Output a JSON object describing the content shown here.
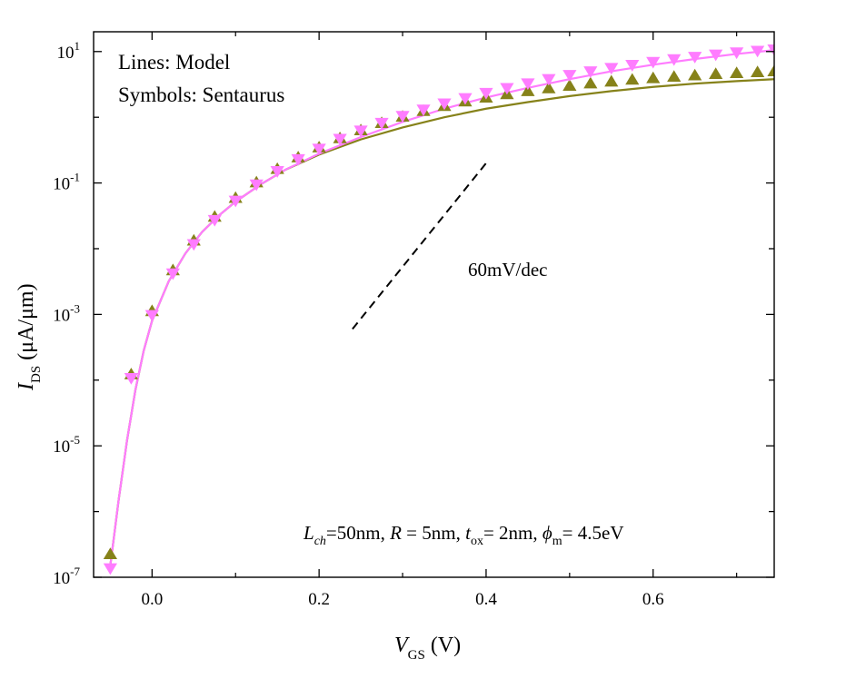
{
  "chart_data": {
    "type": "scatter",
    "xlabel": "V",
    "xlabel_sub": "GS",
    "xlabel_unit": "(V)",
    "ylabel": "I",
    "ylabel_sub": "DS",
    "ylabel_unit": "(μA/μm)",
    "xlim": [
      -0.07,
      0.745
    ],
    "ylim": [
      1e-07,
      20
    ],
    "y_scale": "log",
    "x_ticks": [
      {
        "value": 0.0,
        "label": "0.0"
      },
      {
        "value": 0.2,
        "label": "0.2"
      },
      {
        "value": 0.4,
        "label": "0.4"
      },
      {
        "value": 0.6,
        "label": "0.6"
      }
    ],
    "y_ticks": [
      {
        "value": 1e-07,
        "base": "10",
        "exp": "-7"
      },
      {
        "value": 1e-05,
        "base": "10",
        "exp": "-5"
      },
      {
        "value": 0.001,
        "base": "10",
        "exp": "-3"
      },
      {
        "value": 0.1,
        "base": "10",
        "exp": "-1"
      },
      {
        "value": 10,
        "base": "10",
        "exp": "1"
      }
    ],
    "legend_lines": [
      "Lines: Model",
      "Symbols: Sentaurus"
    ],
    "legend_position": "top-left",
    "slope_label": "60mV/dec",
    "slope_line": {
      "x": [
        0.24,
        0.4
      ],
      "y": [
        0.0006,
        0.2
      ]
    },
    "params": [
      {
        "main": "L",
        "sub": "ch",
        "rest": "=50nm, "
      },
      {
        "main": "R",
        "sub": "",
        "rest": " = 5nm, "
      },
      {
        "main": "t",
        "sub": "ox",
        "rest": "= 2nm, "
      },
      {
        "main": "ϕ",
        "sub": "m",
        "rest": "= 4.5eV"
      }
    ],
    "series": [
      {
        "marker": "triangle-up",
        "color": "#86821a",
        "x": [
          -0.05,
          -0.025,
          0.0,
          0.025,
          0.05,
          0.075,
          0.1,
          0.125,
          0.15,
          0.175,
          0.2,
          0.225,
          0.25,
          0.275,
          0.3,
          0.325,
          0.35,
          0.375,
          0.4,
          0.425,
          0.45,
          0.475,
          0.5,
          0.525,
          0.55,
          0.575,
          0.6,
          0.625,
          0.65,
          0.675,
          0.7,
          0.725,
          0.745
        ],
        "y": [
          2.2e-07,
          0.00012,
          0.0011,
          0.0046,
          0.013,
          0.03,
          0.058,
          0.1,
          0.16,
          0.24,
          0.34,
          0.47,
          0.62,
          0.8,
          1.0,
          1.22,
          1.45,
          1.7,
          1.95,
          2.2,
          2.45,
          2.7,
          2.95,
          3.2,
          3.42,
          3.65,
          3.85,
          4.05,
          4.25,
          4.45,
          4.6,
          4.75,
          4.9
        ]
      },
      {
        "marker": "triangle-down",
        "color": "#ff7cff",
        "x": [
          -0.05,
          -0.025,
          0.0,
          0.025,
          0.05,
          0.075,
          0.1,
          0.125,
          0.15,
          0.175,
          0.2,
          0.225,
          0.25,
          0.275,
          0.3,
          0.325,
          0.35,
          0.375,
          0.4,
          0.425,
          0.45,
          0.475,
          0.5,
          0.525,
          0.55,
          0.575,
          0.6,
          0.625,
          0.65,
          0.675,
          0.7,
          0.725,
          0.745
        ],
        "y": [
          1.4e-07,
          0.00011,
          0.001,
          0.0043,
          0.012,
          0.028,
          0.055,
          0.097,
          0.155,
          0.235,
          0.34,
          0.48,
          0.64,
          0.84,
          1.07,
          1.34,
          1.66,
          2.0,
          2.4,
          2.85,
          3.35,
          3.9,
          4.5,
          5.1,
          5.75,
          6.4,
          7.1,
          7.8,
          8.5,
          9.2,
          9.9,
          10.5,
          11.0
        ]
      },
      {
        "marker": "line",
        "color": "#86821a",
        "x": [
          -0.05,
          -0.04,
          -0.03,
          -0.02,
          -0.01,
          0.0,
          0.02,
          0.04,
          0.06,
          0.08,
          0.1,
          0.13,
          0.16,
          0.2,
          0.25,
          0.3,
          0.35,
          0.4,
          0.45,
          0.5,
          0.55,
          0.6,
          0.65,
          0.7,
          0.745
        ],
        "y": [
          1.5e-07,
          1.5e-06,
          1.2e-05,
          7e-05,
          0.00028,
          0.0008,
          0.0032,
          0.0085,
          0.018,
          0.032,
          0.052,
          0.095,
          0.16,
          0.27,
          0.46,
          0.7,
          1.0,
          1.35,
          1.7,
          2.1,
          2.5,
          2.9,
          3.25,
          3.55,
          3.8
        ]
      },
      {
        "marker": "line",
        "color": "#ff7cff",
        "x": [
          -0.05,
          -0.04,
          -0.03,
          -0.02,
          -0.01,
          0.0,
          0.02,
          0.04,
          0.06,
          0.08,
          0.1,
          0.13,
          0.16,
          0.2,
          0.25,
          0.3,
          0.35,
          0.4,
          0.45,
          0.5,
          0.55,
          0.6,
          0.65,
          0.7,
          0.745
        ],
        "y": [
          1.5e-07,
          1.5e-06,
          1.2e-05,
          7e-05,
          0.00028,
          0.0008,
          0.0032,
          0.0085,
          0.018,
          0.032,
          0.052,
          0.095,
          0.16,
          0.28,
          0.5,
          0.85,
          1.35,
          2.0,
          2.8,
          3.8,
          5.0,
          6.3,
          7.7,
          9.2,
          10.5
        ]
      }
    ]
  }
}
